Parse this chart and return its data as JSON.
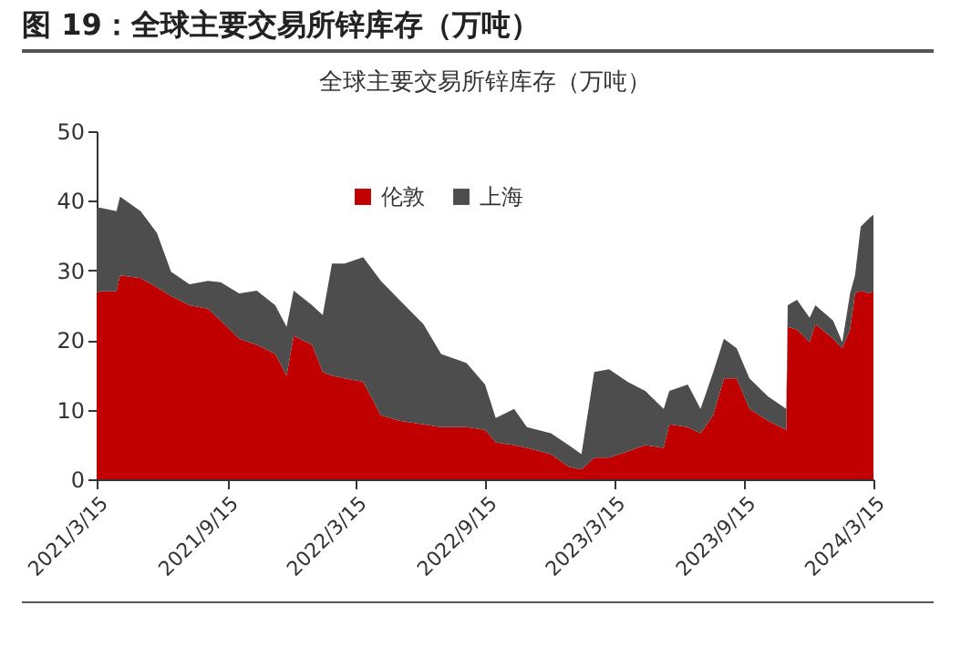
{
  "chart_data": {
    "type": "area",
    "title": "图 19：全球主要交易所锌库存（万吨）",
    "subtitle": "全球主要交易所锌库存（万吨）",
    "stacked": true,
    "legend": "top",
    "x": [
      "2021-03-15",
      "2021-03-20",
      "2021-04-12",
      "2021-04-17",
      "2021-05-16",
      "2021-06-08",
      "2021-06-28",
      "2021-07-24",
      "2021-08-19",
      "2021-09-06",
      "2021-10-02",
      "2021-10-27",
      "2021-11-22",
      "2021-12-08",
      "2021-12-18",
      "2022-01-13",
      "2022-01-28",
      "2022-02-10",
      "2022-02-28",
      "2022-03-26",
      "2022-04-20",
      "2022-05-16",
      "2022-06-19",
      "2022-07-14",
      "2022-08-19",
      "2022-09-14",
      "2022-09-29",
      "2022-10-25",
      "2022-11-12",
      "2022-12-16",
      "2023-01-10",
      "2023-01-28",
      "2023-02-15",
      "2023-03-08",
      "2023-04-03",
      "2023-04-28",
      "2023-05-24",
      "2023-06-01",
      "2023-06-27",
      "2023-07-15",
      "2023-08-02",
      "2023-08-17",
      "2023-09-04",
      "2023-09-22",
      "2023-10-18",
      "2023-11-13",
      "2023-11-15",
      "2023-11-28",
      "2023-12-16",
      "2023-12-24",
      "2024-01-18",
      "2024-01-31",
      "2024-02-11",
      "2024-02-18",
      "2024-02-26",
      "2024-03-10",
      "2024-03-15"
    ],
    "series": [
      {
        "name": "伦敦",
        "color": "#c00000",
        "values": [
          26.7,
          27,
          27,
          29.3,
          28.9,
          27.6,
          26.3,
          25,
          24.5,
          22.8,
          20.2,
          19.3,
          18,
          14.9,
          20.6,
          19.3,
          15.4,
          14.9,
          14.5,
          14,
          9.2,
          8.4,
          7.9,
          7.5,
          7.5,
          7.1,
          5.3,
          4.9,
          4.5,
          3.6,
          1.8,
          1.4,
          3.1,
          3.1,
          4,
          4.9,
          4.5,
          7.9,
          7.5,
          6.6,
          9.2,
          14.5,
          14.5,
          10.1,
          8.4,
          7.1,
          21.9,
          21.5,
          19.7,
          22.3,
          20.2,
          18.8,
          21.5,
          26.7,
          27.1,
          26.7,
          27
        ]
      },
      {
        "name": "上海",
        "color": "#4d4d4d",
        "values": [
          12.3,
          12,
          11.5,
          11.3,
          9.6,
          7.8,
          3.5,
          3,
          4,
          5.5,
          6.5,
          7.8,
          7,
          7,
          6.5,
          5.7,
          8.2,
          16.1,
          16.5,
          17.9,
          19.3,
          17.4,
          14.4,
          10.5,
          9.2,
          6.5,
          3.5,
          5.2,
          3,
          3,
          3.1,
          2.2,
          12.3,
          12.7,
          10,
          7.8,
          5.6,
          4.8,
          6.1,
          3.5,
          6.2,
          5.7,
          4.3,
          4.4,
          3.5,
          3,
          3.1,
          4.3,
          3.5,
          2.7,
          2.6,
          0.9,
          5.2,
          2.6,
          9.2,
          10.9,
          11
        ]
      }
    ],
    "xlim": [
      "2021-03-15",
      "2024-03-15"
    ],
    "xticks": [
      {
        "value": "2021-03-15",
        "label": "2021/3/15"
      },
      {
        "value": "2021-09-15",
        "label": "2021/9/15"
      },
      {
        "value": "2022-03-15",
        "label": "2022/3/15"
      },
      {
        "value": "2022-09-15",
        "label": "2022/9/15"
      },
      {
        "value": "2023-03-15",
        "label": "2023/3/15"
      },
      {
        "value": "2023-09-15",
        "label": "2023/9/15"
      },
      {
        "value": "2024-03-15",
        "label": "2024/3/15"
      }
    ],
    "ylim": [
      0,
      50
    ],
    "yticks": [
      0,
      10,
      20,
      30,
      40,
      50
    ]
  }
}
